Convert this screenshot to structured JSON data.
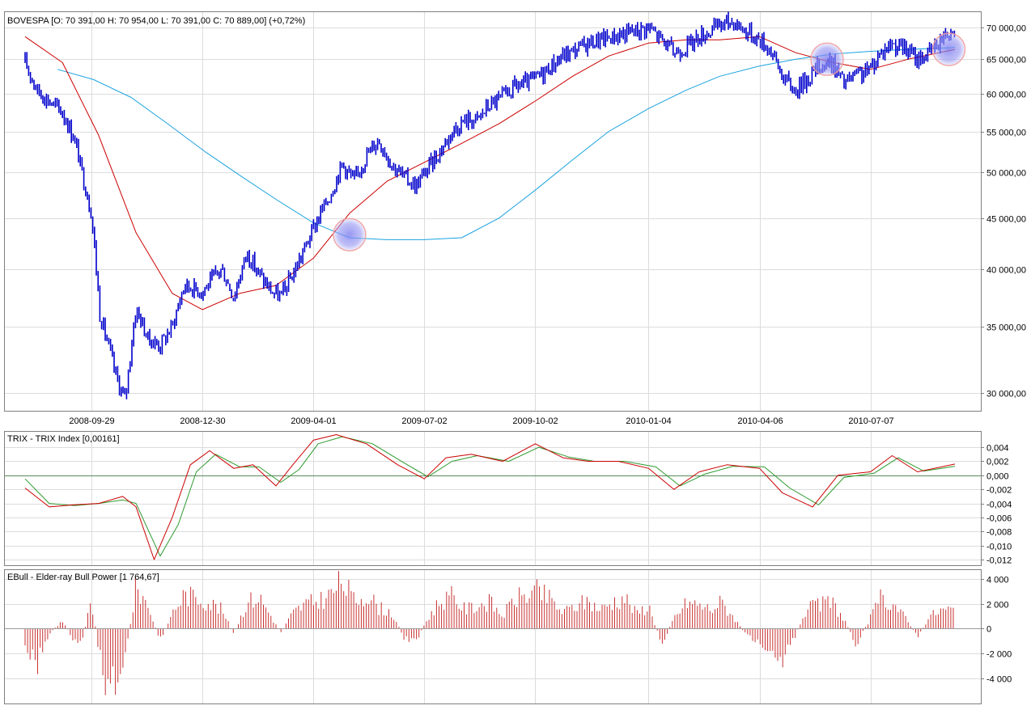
{
  "colors": {
    "price": "#0000cc",
    "ma_fast": "#cc0000",
    "ma_slow": "#1aa3e0",
    "trix": "#cc0000",
    "trix_signal": "#2e9a2e",
    "ebull": "#c83232",
    "zero_line": "#5a8a5a",
    "grid": "#dcdcdc",
    "frame": "#7f7f7f",
    "highlight": "#8c8cf0"
  },
  "chart_data": [
    {
      "type": "line",
      "chart_style": "candlestick",
      "title": "BOVESPA [O: 70 391,00  H: 70 954,00  L: 70 391,00  C: 70 889,00] (+0,72%)",
      "scale": "log",
      "ylim": [
        28800,
        72500
      ],
      "yticks": [
        30000,
        35000,
        40000,
        45000,
        50000,
        55000,
        60000,
        65000,
        70000
      ],
      "ytick_labels": [
        "30 000,00",
        "35 000,00",
        "40 000,00",
        "45 000,00",
        "50 000,00",
        "55 000,00",
        "60 000,00",
        "65 000,00",
        "70 000,00"
      ],
      "xtick_labels": [
        "2008-09-29",
        "2008-12-30",
        "2009-04-01",
        "2009-07-02",
        "2009-10-02",
        "2010-01-04",
        "2010-04-06",
        "2010-07-07"
      ],
      "x_range": [
        "2008-08-05",
        "2010-09-15"
      ],
      "grid": true,
      "series": [
        {
          "role": "price",
          "x": [
            "2008-08-05",
            "2008-08-15",
            "2008-08-25",
            "2008-09-05",
            "2008-09-15",
            "2008-09-22",
            "2008-09-29",
            "2008-10-06",
            "2008-10-13",
            "2008-10-20",
            "2008-10-27",
            "2008-11-05",
            "2008-11-15",
            "2008-11-25",
            "2008-12-05",
            "2008-12-15",
            "2008-12-30",
            "2009-01-15",
            "2009-01-25",
            "2009-02-05",
            "2009-02-15",
            "2009-02-25",
            "2009-03-05",
            "2009-03-15",
            "2009-03-25",
            "2009-04-05",
            "2009-04-15",
            "2009-04-25",
            "2009-05-05",
            "2009-05-15",
            "2009-05-25",
            "2009-06-05",
            "2009-06-15",
            "2009-06-25",
            "2009-07-05",
            "2009-07-15",
            "2009-07-25",
            "2009-08-05",
            "2009-08-15",
            "2009-08-25",
            "2009-09-05",
            "2009-09-15",
            "2009-09-25",
            "2009-10-05",
            "2009-10-15",
            "2009-10-25",
            "2009-11-05",
            "2009-11-15",
            "2009-11-25",
            "2009-12-05",
            "2009-12-15",
            "2009-12-25",
            "2010-01-04",
            "2010-01-15",
            "2010-01-25",
            "2010-02-05",
            "2010-02-15",
            "2010-02-25",
            "2010-03-05",
            "2010-03-15",
            "2010-03-25",
            "2010-04-06",
            "2010-04-15",
            "2010-04-25",
            "2010-05-05",
            "2010-05-15",
            "2010-05-25",
            "2010-06-05",
            "2010-06-15",
            "2010-06-25",
            "2010-07-07",
            "2010-07-15",
            "2010-07-25",
            "2010-08-05",
            "2010-08-15",
            "2010-08-25",
            "2010-09-05",
            "2010-09-15"
          ],
          "values": [
            64500,
            60500,
            59000,
            57500,
            54000,
            49500,
            45500,
            36000,
            33500,
            31000,
            29500,
            36500,
            34000,
            33500,
            35000,
            38500,
            38000,
            40000,
            37500,
            41500,
            39500,
            38000,
            37500,
            39500,
            42000,
            45000,
            47500,
            51000,
            49000,
            52000,
            54000,
            51000,
            49500,
            48500,
            50500,
            52500,
            55000,
            56500,
            56500,
            58500,
            59500,
            61000,
            61500,
            62500,
            64000,
            65500,
            66500,
            67500,
            68000,
            68500,
            69000,
            69500,
            70000,
            68000,
            66000,
            67000,
            68500,
            69500,
            70500,
            71000,
            69500,
            68000,
            66500,
            62500,
            60500,
            62000,
            64000,
            64500,
            61500,
            62500,
            63500,
            66000,
            67500,
            66500,
            65000,
            66000,
            68500,
            70500
          ]
        },
        {
          "role": "moving_average_fast",
          "x": [
            "2008-08-05",
            "2008-09-05",
            "2008-10-05",
            "2008-11-05",
            "2008-12-05",
            "2008-12-30",
            "2009-01-30",
            "2009-03-01",
            "2009-04-01",
            "2009-05-01",
            "2009-06-01",
            "2009-07-02",
            "2009-08-02",
            "2009-09-02",
            "2009-10-02",
            "2009-11-02",
            "2009-12-02",
            "2010-01-04",
            "2010-02-04",
            "2010-03-04",
            "2010-04-06",
            "2010-05-06",
            "2010-06-06",
            "2010-07-07",
            "2010-08-07",
            "2010-09-15"
          ],
          "values": [
            68500,
            64500,
            54500,
            43500,
            37800,
            36400,
            37800,
            38500,
            41000,
            45500,
            49000,
            51200,
            53500,
            56000,
            59000,
            62500,
            65500,
            67500,
            68000,
            68000,
            68500,
            66000,
            64500,
            63500,
            65000,
            66500
          ]
        },
        {
          "role": "moving_average_slow",
          "x": [
            "2008-09-01",
            "2008-10-01",
            "2008-11-01",
            "2008-12-01",
            "2009-01-01",
            "2009-02-01",
            "2009-03-01",
            "2009-04-01",
            "2009-05-01",
            "2009-06-01",
            "2009-07-02",
            "2009-08-02",
            "2009-09-02",
            "2009-10-02",
            "2009-11-02",
            "2009-12-02",
            "2010-01-04",
            "2010-02-04",
            "2010-03-04",
            "2010-04-06",
            "2010-05-06",
            "2010-06-06",
            "2010-07-07",
            "2010-08-07",
            "2010-09-15"
          ],
          "values": [
            63500,
            62000,
            59500,
            56000,
            52500,
            49500,
            47000,
            44500,
            43000,
            42800,
            42800,
            43000,
            45000,
            48000,
            51500,
            55000,
            58000,
            60500,
            62500,
            64000,
            65000,
            65800,
            66200,
            66500,
            66800
          ]
        }
      ],
      "highlights": [
        {
          "x": "2009-05-01",
          "y": 43300
        },
        {
          "x": "2010-06-01",
          "y": 65000
        },
        {
          "x": "2010-09-10",
          "y": 66500
        }
      ]
    },
    {
      "type": "line",
      "title": "TRIX - TRIX Index [0,00161]",
      "ylim": [
        -0.0128,
        0.0062
      ],
      "yticks": [
        0.004,
        0.002,
        0.0,
        -0.002,
        -0.004,
        -0.006,
        -0.008,
        -0.01,
        -0.012
      ],
      "ytick_labels": [
        "0,004",
        "0,002",
        "0,000",
        "-0,002",
        "-0,004",
        "-0,006",
        "-0,008",
        "-0,010",
        "-0,012"
      ],
      "x_range": [
        "2008-08-05",
        "2010-09-15"
      ],
      "grid": true,
      "series": [
        {
          "role": "trix",
          "x": [
            "2008-08-05",
            "2008-08-25",
            "2008-09-15",
            "2008-10-05",
            "2008-10-25",
            "2008-11-05",
            "2008-11-20",
            "2008-12-05",
            "2008-12-20",
            "2009-01-05",
            "2009-01-25",
            "2009-02-10",
            "2009-03-01",
            "2009-03-15",
            "2009-04-01",
            "2009-04-20",
            "2009-05-15",
            "2009-06-10",
            "2009-07-02",
            "2009-07-20",
            "2009-08-10",
            "2009-09-05",
            "2009-10-02",
            "2009-10-25",
            "2009-11-15",
            "2009-12-10",
            "2010-01-04",
            "2010-01-25",
            "2010-02-15",
            "2010-03-10",
            "2010-04-06",
            "2010-04-25",
            "2010-05-20",
            "2010-06-10",
            "2010-07-07",
            "2010-07-25",
            "2010-08-15",
            "2010-09-15"
          ],
          "values": [
            -0.0018,
            -0.0045,
            -0.0042,
            -0.004,
            -0.003,
            -0.0045,
            -0.012,
            -0.006,
            0.0015,
            0.0035,
            0.001,
            0.0015,
            -0.0015,
            0.0015,
            0.005,
            0.0058,
            0.0045,
            0.0015,
            -0.0005,
            0.0025,
            0.003,
            0.002,
            0.0045,
            0.0025,
            0.002,
            0.002,
            0.001,
            -0.002,
            0.0005,
            0.0015,
            0.001,
            -0.0025,
            -0.0045,
            0.0,
            0.0005,
            0.0028,
            0.0005,
            0.0016
          ]
        },
        {
          "role": "signal",
          "x": [
            "2008-08-05",
            "2008-08-25",
            "2008-09-15",
            "2008-10-05",
            "2008-10-25",
            "2008-11-05",
            "2008-11-25",
            "2008-12-10",
            "2008-12-25",
            "2009-01-10",
            "2009-01-30",
            "2009-02-15",
            "2009-03-05",
            "2009-03-20",
            "2009-04-05",
            "2009-04-25",
            "2009-05-20",
            "2009-06-15",
            "2009-07-05",
            "2009-07-25",
            "2009-08-15",
            "2009-09-10",
            "2009-10-05",
            "2009-10-30",
            "2009-11-20",
            "2009-12-15",
            "2010-01-10",
            "2010-01-30",
            "2010-02-20",
            "2010-03-15",
            "2010-04-10",
            "2010-05-01",
            "2010-05-25",
            "2010-06-15",
            "2010-07-10",
            "2010-07-30",
            "2010-08-20",
            "2010-09-15"
          ],
          "values": [
            -0.0005,
            -0.004,
            -0.0043,
            -0.004,
            -0.0035,
            -0.004,
            -0.0115,
            -0.007,
            0.0005,
            0.003,
            0.0012,
            0.0012,
            -0.001,
            0.0008,
            0.0045,
            0.0055,
            0.0045,
            0.0018,
            -0.0002,
            0.002,
            0.0028,
            0.002,
            0.004,
            0.0026,
            0.002,
            0.002,
            0.0012,
            -0.0015,
            0.0002,
            0.0013,
            0.0012,
            -0.0018,
            -0.0042,
            -0.0003,
            0.0003,
            0.0025,
            0.0006,
            0.0013
          ]
        }
      ]
    },
    {
      "type": "bar",
      "title": "EBull - Elder-ray Bull Power [1 764,67]",
      "ylim": [
        -6000,
        4700
      ],
      "yticks": [
        4000,
        2000,
        0,
        -2000,
        -4000
      ],
      "ytick_labels": [
        "4 000",
        "2 000",
        "0",
        "-2 000",
        "-4 000"
      ],
      "x_range": [
        "2008-08-05",
        "2010-09-15"
      ],
      "grid": true,
      "series": [
        {
          "role": "bull_power",
          "x": [
            "2008-08-05",
            "2008-08-15",
            "2008-08-25",
            "2008-09-05",
            "2008-09-15",
            "2008-09-22",
            "2008-09-29",
            "2008-10-06",
            "2008-10-13",
            "2008-10-20",
            "2008-10-27",
            "2008-11-05",
            "2008-11-15",
            "2008-11-25",
            "2008-12-05",
            "2008-12-15",
            "2008-12-30",
            "2009-01-15",
            "2009-01-25",
            "2009-02-05",
            "2009-02-15",
            "2009-02-25",
            "2009-03-05",
            "2009-03-15",
            "2009-03-25",
            "2009-04-05",
            "2009-04-15",
            "2009-04-25",
            "2009-05-05",
            "2009-05-15",
            "2009-05-25",
            "2009-06-05",
            "2009-06-15",
            "2009-06-25",
            "2009-07-05",
            "2009-07-15",
            "2009-07-25",
            "2009-08-05",
            "2009-08-15",
            "2009-08-25",
            "2009-09-05",
            "2009-09-15",
            "2009-09-25",
            "2009-10-05",
            "2009-10-15",
            "2009-10-25",
            "2009-11-05",
            "2009-11-15",
            "2009-11-25",
            "2009-12-05",
            "2009-12-15",
            "2009-12-25",
            "2010-01-04",
            "2010-01-15",
            "2010-01-25",
            "2010-02-05",
            "2010-02-15",
            "2010-02-25",
            "2010-03-05",
            "2010-03-15",
            "2010-03-25",
            "2010-04-06",
            "2010-04-15",
            "2010-04-25",
            "2010-05-05",
            "2010-05-15",
            "2010-05-25",
            "2010-06-05",
            "2010-06-15",
            "2010-06-25",
            "2010-07-07",
            "2010-07-15",
            "2010-07-25",
            "2010-08-05",
            "2010-08-15",
            "2010-08-25",
            "2010-09-05",
            "2010-09-15"
          ],
          "values": [
            -1500,
            -3500,
            -500,
            800,
            -1200,
            -800,
            2600,
            -2500,
            -5800,
            -4500,
            -3000,
            4000,
            2200,
            -1200,
            1500,
            3200,
            2800,
            1800,
            -500,
            2500,
            3000,
            1200,
            -400,
            1500,
            2300,
            2600,
            3200,
            4500,
            2600,
            3300,
            2000,
            1500,
            -800,
            -1200,
            1000,
            2600,
            3000,
            1800,
            2200,
            2500,
            1200,
            2800,
            3200,
            3500,
            2700,
            1500,
            2200,
            2600,
            1800,
            2500,
            3000,
            1400,
            2200,
            -1500,
            1000,
            2500,
            2200,
            1800,
            2500,
            1200,
            -500,
            -1200,
            -1800,
            -3000,
            -800,
            1800,
            2200,
            2500,
            900,
            -1400,
            1000,
            2800,
            2500,
            1000,
            -800,
            1200,
            1800,
            1760
          ]
        }
      ]
    }
  ]
}
